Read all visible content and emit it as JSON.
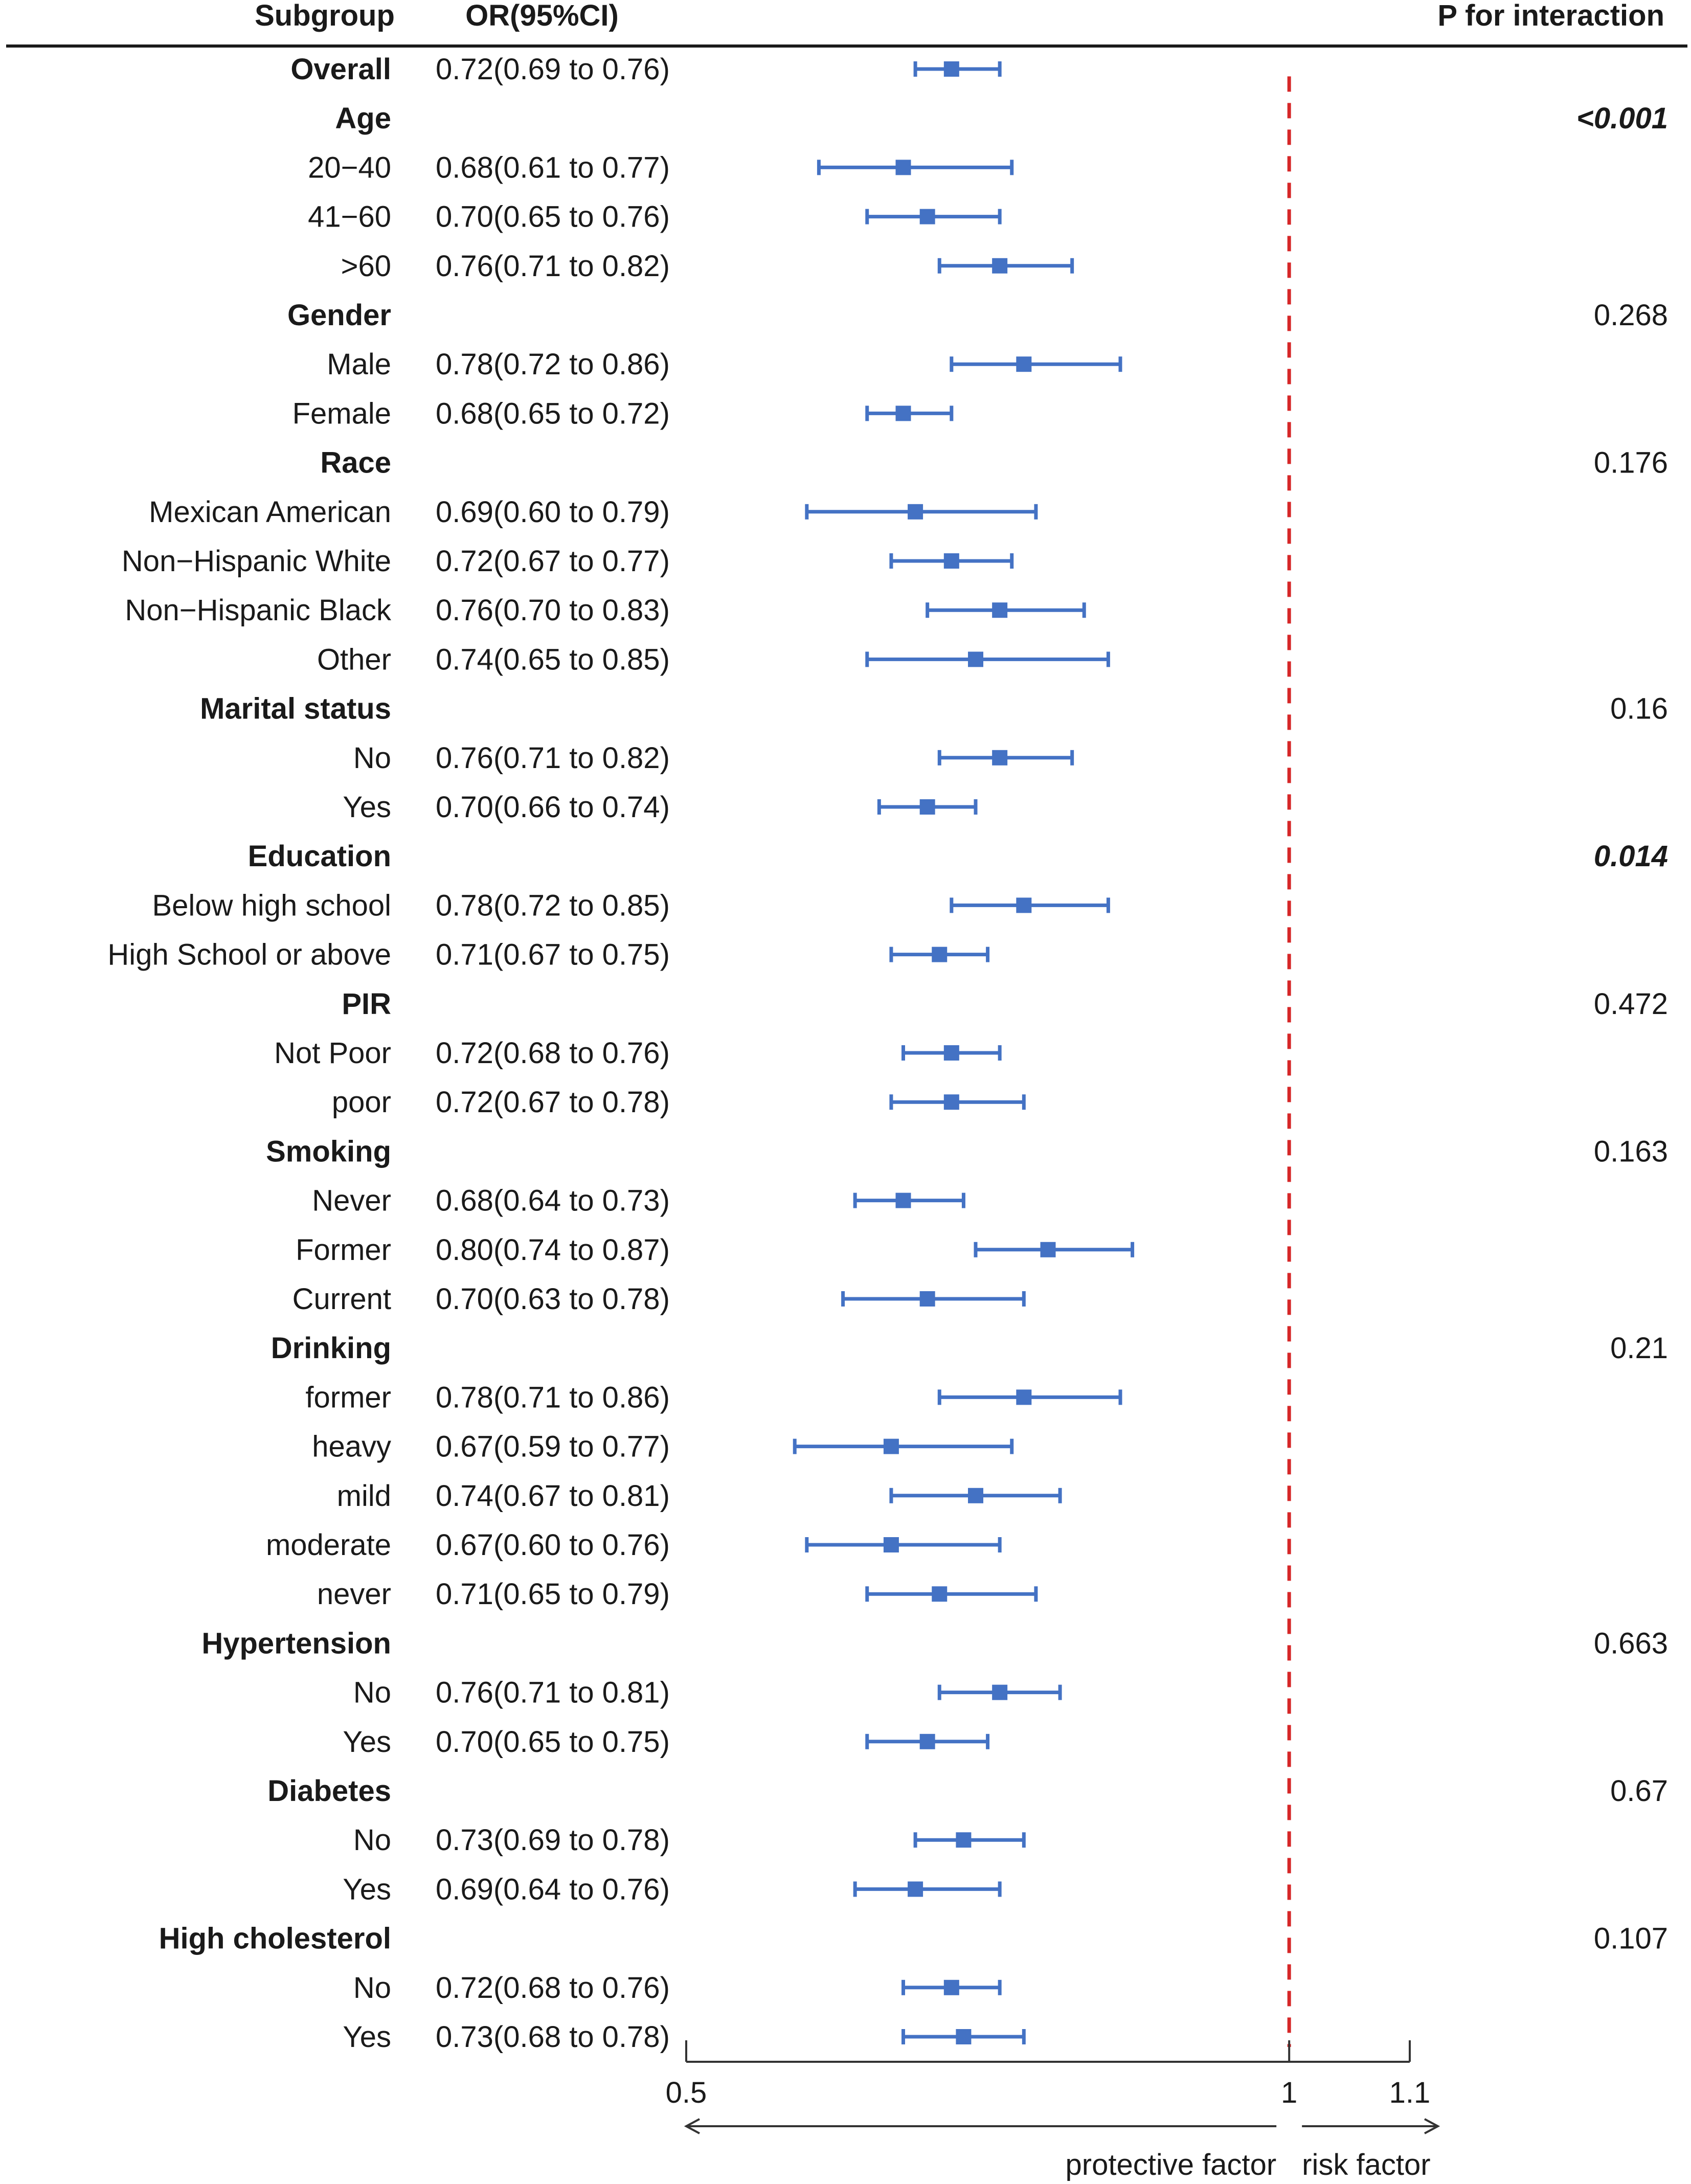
{
  "chart_data": {
    "type": "forest",
    "headers": {
      "subgroup": "Subgroup",
      "or": "OR(95%CI)",
      "p": "P for interaction"
    },
    "colors": {
      "marker": "#4472c4",
      "reference_line": "#d62728",
      "text": "#1a1a1a",
      "axis": "#333333"
    },
    "x_axis": {
      "min": 0.5,
      "max": 1.1,
      "ticks": [
        {
          "value": 0.5,
          "label": "0.5"
        },
        {
          "value": 1,
          "label": "1"
        },
        {
          "value": 1.1,
          "label": "1.1"
        }
      ],
      "reference": 1,
      "left_annotation": "protective factor",
      "right_annotation": "risk factor"
    },
    "rows": [
      {
        "label": "Overall",
        "bold": true,
        "or": 0.72,
        "lo": 0.69,
        "hi": 0.76,
        "ci_text": "0.72(0.69 to 0.76)",
        "p": ""
      },
      {
        "label": "Age",
        "bold": true,
        "p": "<0.001",
        "p_italic": true
      },
      {
        "label": "20−40",
        "or": 0.68,
        "lo": 0.61,
        "hi": 0.77,
        "ci_text": "0.68(0.61 to 0.77)"
      },
      {
        "label": "41−60",
        "or": 0.7,
        "lo": 0.65,
        "hi": 0.76,
        "ci_text": "0.70(0.65 to 0.76)"
      },
      {
        "label": ">60",
        "or": 0.76,
        "lo": 0.71,
        "hi": 0.82,
        "ci_text": "0.76(0.71 to 0.82)"
      },
      {
        "label": "Gender",
        "bold": true,
        "p": "0.268"
      },
      {
        "label": "Male",
        "or": 0.78,
        "lo": 0.72,
        "hi": 0.86,
        "ci_text": "0.78(0.72 to 0.86)"
      },
      {
        "label": "Female",
        "or": 0.68,
        "lo": 0.65,
        "hi": 0.72,
        "ci_text": "0.68(0.65 to 0.72)"
      },
      {
        "label": "Race",
        "bold": true,
        "p": "0.176"
      },
      {
        "label": "Mexican American",
        "or": 0.69,
        "lo": 0.6,
        "hi": 0.79,
        "ci_text": "0.69(0.60 to 0.79)"
      },
      {
        "label": "Non−Hispanic White",
        "or": 0.72,
        "lo": 0.67,
        "hi": 0.77,
        "ci_text": "0.72(0.67 to 0.77)"
      },
      {
        "label": "Non−Hispanic Black",
        "or": 0.76,
        "lo": 0.7,
        "hi": 0.83,
        "ci_text": "0.76(0.70 to 0.83)"
      },
      {
        "label": "Other",
        "or": 0.74,
        "lo": 0.65,
        "hi": 0.85,
        "ci_text": "0.74(0.65 to 0.85)"
      },
      {
        "label": "Marital status",
        "bold": true,
        "p": "0.16"
      },
      {
        "label": "No",
        "or": 0.76,
        "lo": 0.71,
        "hi": 0.82,
        "ci_text": "0.76(0.71 to 0.82)"
      },
      {
        "label": "Yes",
        "or": 0.7,
        "lo": 0.66,
        "hi": 0.74,
        "ci_text": "0.70(0.66 to 0.74)"
      },
      {
        "label": "Education",
        "bold": true,
        "p": "0.014",
        "p_italic": true
      },
      {
        "label": "Below high school",
        "or": 0.78,
        "lo": 0.72,
        "hi": 0.85,
        "ci_text": "0.78(0.72 to 0.85)"
      },
      {
        "label": "High School or above",
        "or": 0.71,
        "lo": 0.67,
        "hi": 0.75,
        "ci_text": "0.71(0.67 to 0.75)"
      },
      {
        "label": "PIR",
        "bold": true,
        "p": "0.472"
      },
      {
        "label": "Not Poor",
        "or": 0.72,
        "lo": 0.68,
        "hi": 0.76,
        "ci_text": "0.72(0.68 to 0.76)"
      },
      {
        "label": "poor",
        "or": 0.72,
        "lo": 0.67,
        "hi": 0.78,
        "ci_text": "0.72(0.67 to 0.78)"
      },
      {
        "label": "Smoking",
        "bold": true,
        "p": "0.163"
      },
      {
        "label": "Never",
        "or": 0.68,
        "lo": 0.64,
        "hi": 0.73,
        "ci_text": "0.68(0.64 to 0.73)"
      },
      {
        "label": "Former",
        "or": 0.8,
        "lo": 0.74,
        "hi": 0.87,
        "ci_text": "0.80(0.74 to 0.87)"
      },
      {
        "label": "Current",
        "or": 0.7,
        "lo": 0.63,
        "hi": 0.78,
        "ci_text": "0.70(0.63 to 0.78)"
      },
      {
        "label": "Drinking",
        "bold": true,
        "p": "0.21"
      },
      {
        "label": "former",
        "or": 0.78,
        "lo": 0.71,
        "hi": 0.86,
        "ci_text": "0.78(0.71 to 0.86)"
      },
      {
        "label": "heavy",
        "or": 0.67,
        "lo": 0.59,
        "hi": 0.77,
        "ci_text": "0.67(0.59 to 0.77)"
      },
      {
        "label": "mild",
        "or": 0.74,
        "lo": 0.67,
        "hi": 0.81,
        "ci_text": "0.74(0.67 to 0.81)"
      },
      {
        "label": "moderate",
        "or": 0.67,
        "lo": 0.6,
        "hi": 0.76,
        "ci_text": "0.67(0.60 to 0.76)"
      },
      {
        "label": "never",
        "or": 0.71,
        "lo": 0.65,
        "hi": 0.79,
        "ci_text": "0.71(0.65 to 0.79)"
      },
      {
        "label": "Hypertension",
        "bold": true,
        "p": "0.663"
      },
      {
        "label": "No",
        "or": 0.76,
        "lo": 0.71,
        "hi": 0.81,
        "ci_text": "0.76(0.71 to 0.81)"
      },
      {
        "label": "Yes",
        "or": 0.7,
        "lo": 0.65,
        "hi": 0.75,
        "ci_text": "0.70(0.65 to 0.75)"
      },
      {
        "label": "Diabetes",
        "bold": true,
        "p": "0.67"
      },
      {
        "label": "No",
        "or": 0.73,
        "lo": 0.69,
        "hi": 0.78,
        "ci_text": "0.73(0.69 to 0.78)"
      },
      {
        "label": "Yes",
        "or": 0.69,
        "lo": 0.64,
        "hi": 0.76,
        "ci_text": "0.69(0.64 to 0.76)"
      },
      {
        "label": "High cholesterol",
        "bold": true,
        "p": "0.107"
      },
      {
        "label": "No",
        "or": 0.72,
        "lo": 0.68,
        "hi": 0.76,
        "ci_text": "0.72(0.68 to 0.76)"
      },
      {
        "label": "Yes",
        "or": 0.73,
        "lo": 0.68,
        "hi": 0.78,
        "ci_text": "0.73(0.68 to 0.78)"
      }
    ]
  }
}
